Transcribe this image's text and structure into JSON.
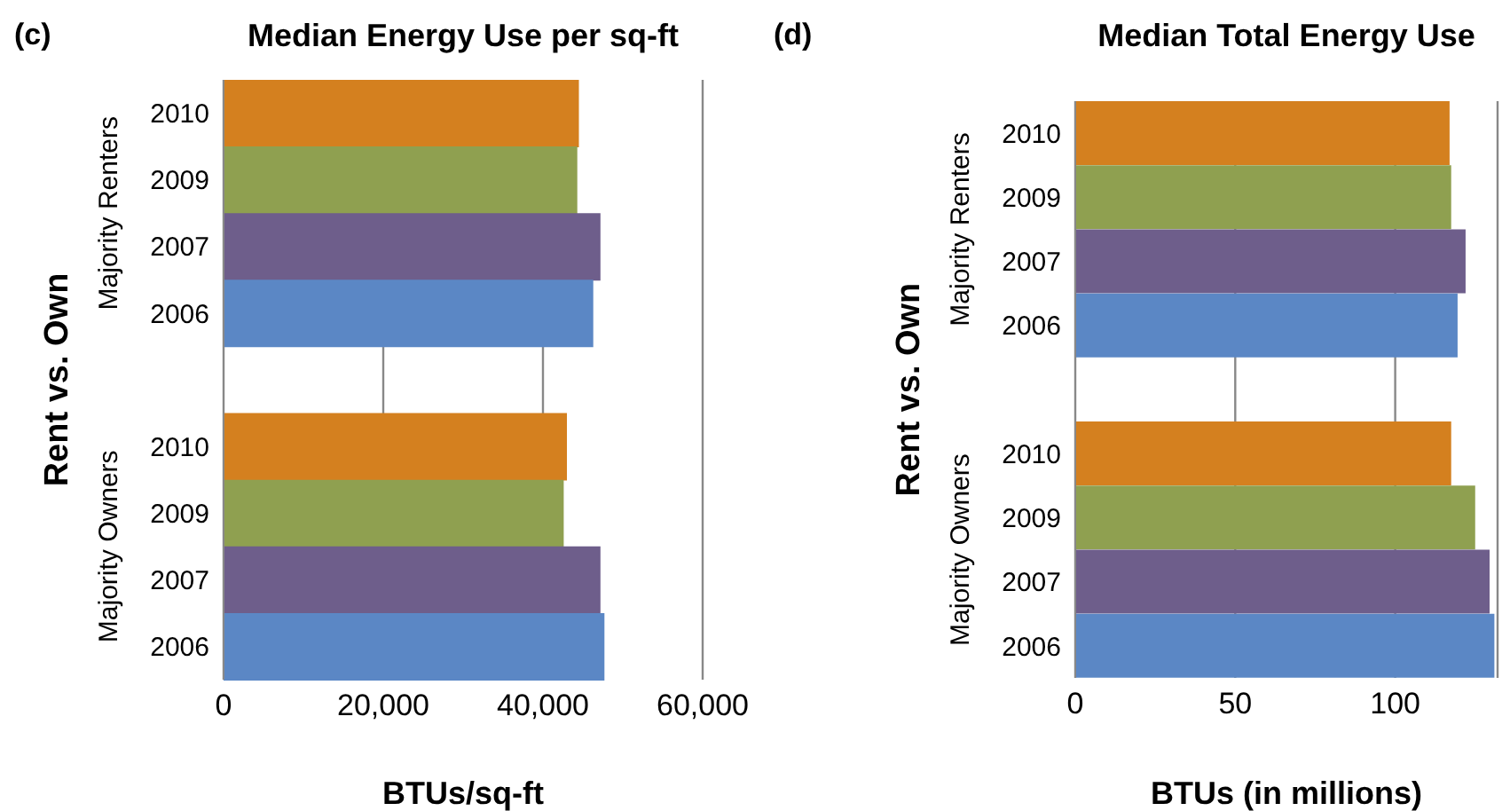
{
  "chart_data": [
    {
      "type": "bar",
      "orientation": "horizontal",
      "title": "Median Energy Use per sq-ft",
      "xlabel": "BTUs/sq-ft",
      "ylabel": "Rent vs. Own",
      "annotations": [
        "(c)",
        "Majority Renters",
        "Majority Owners"
      ],
      "categories": [
        "2010",
        "2009",
        "2007",
        "2006",
        null,
        "2010",
        "2009",
        "2007",
        "2006"
      ],
      "values": [
        44500,
        44300,
        47200,
        46300,
        null,
        43000,
        42600,
        47200,
        47700
      ],
      "colors": [
        "#d4801f",
        "#8fa050",
        "#6e5e8b",
        "#5b87c5",
        "#ffffff",
        "#d4801f",
        "#8fa050",
        "#6e5e8b",
        "#5b87c5"
      ],
      "xlim": [
        0,
        60000
      ],
      "xticks": [
        {
          "value": 0,
          "label": "0"
        },
        {
          "value": 20000,
          "label": "20,000"
        },
        {
          "value": 40000,
          "label": "40,000"
        },
        {
          "value": 60000,
          "label": "60,000"
        }
      ],
      "grid": "x",
      "legend": false
    },
    {
      "type": "bar",
      "orientation": "horizontal",
      "title": "Median Total Energy Use",
      "xlabel": "BTUs (in millions)",
      "ylabel": "Rent vs. Own",
      "annotations": [
        "(d)",
        "Majority Renters",
        "Majority Owners"
      ],
      "categories": [
        "2010",
        "2009",
        "2007",
        "2006",
        null,
        "2010",
        "2009",
        "2007",
        "2006"
      ],
      "values": [
        117,
        117.5,
        122,
        119.5,
        null,
        117.5,
        125,
        129.5,
        131
      ],
      "colors": [
        "#d4801f",
        "#8fa050",
        "#6e5e8b",
        "#5b87c5",
        "#ffffff",
        "#d4801f",
        "#8fa050",
        "#6e5e8b",
        "#5b87c5"
      ],
      "xlim": [
        0,
        132
      ],
      "xticks": [
        0,
        50,
        100
      ],
      "grid": "x",
      "legend": false
    }
  ]
}
